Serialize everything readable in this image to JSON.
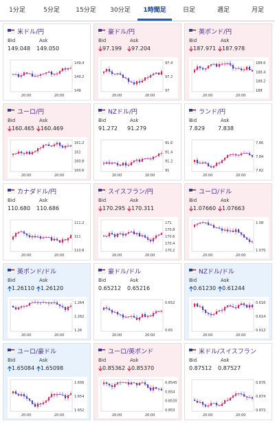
{
  "tabs": [
    "1分足",
    "5分足",
    "15分足",
    "30分足",
    "1時間足",
    "日足",
    "週足",
    "月足"
  ],
  "active_tab": 4,
  "labels": {
    "bid": "Bid",
    "ask": "Ask"
  },
  "cards": [
    {
      "name": "米ドル/円",
      "bid": "149.048",
      "ask": "149.050",
      "trend": null,
      "yticks": [
        "149.4",
        "149.2",
        "149"
      ],
      "xticks": [
        "20:00",
        "20:00"
      ]
    },
    {
      "name": "豪ドル/円",
      "bid": "97.199",
      "ask": "97.204",
      "trend": "down",
      "yticks": [
        "97.4",
        "97.2",
        "97"
      ],
      "xticks": [
        "20:00",
        "20:00"
      ]
    },
    {
      "name": "英ポンド/円",
      "bid": "187.971",
      "ask": "187.978",
      "trend": "down",
      "yticks": [
        "188.6",
        "188.4",
        "188.2",
        "188"
      ],
      "xticks": [
        "20:00",
        "20:00"
      ]
    },
    {
      "name": "ユーロ/円",
      "bid": "160.465",
      "ask": "160.469",
      "trend": "down",
      "yticks": [
        "161.2",
        "161",
        "160.8",
        "160.6"
      ],
      "xticks": [
        "20:00",
        "20:00"
      ]
    },
    {
      "name": "NZドル/円",
      "bid": "91.272",
      "ask": "91.279",
      "trend": null,
      "yticks": [
        "91.6",
        "91.4",
        "91.2",
        "91"
      ],
      "xticks": [
        "20:00",
        "20:00"
      ]
    },
    {
      "name": "ランド/円",
      "bid": "7.829",
      "ask": "7.838",
      "trend": null,
      "yticks": [
        "7.86",
        "7.84",
        "7.82"
      ],
      "xticks": [
        "20:00",
        "20:00"
      ]
    },
    {
      "name": "カナダドル/円",
      "bid": "110.680",
      "ask": "110.686",
      "trend": null,
      "yticks": [
        "111.2",
        "111",
        "110.8"
      ],
      "xticks": [
        "20:00",
        "20:00"
      ]
    },
    {
      "name": "スイスフラン/円",
      "bid": "170.295",
      "ask": "170.311",
      "trend": "down",
      "yticks": [
        "171",
        "170.8",
        "170.6",
        "170.4",
        "170.2"
      ],
      "xticks": [
        "20:00",
        "20:00"
      ]
    },
    {
      "name": "ユーロ/ドル",
      "bid": "1.07660",
      "ask": "1.07663",
      "trend": "down",
      "yticks": [
        "1.08",
        "1.075"
      ],
      "xticks": [
        "20:00",
        "20:00"
      ]
    },
    {
      "name": "英ポンド/ドル",
      "bid": "1.26110",
      "ask": "1.26120",
      "trend": "up",
      "yticks": [
        "1.264",
        "1.262",
        "1.26"
      ],
      "xticks": [
        "20:00",
        "20:00"
      ]
    },
    {
      "name": "豪ドル/ドル",
      "bid": "0.65212",
      "ask": "0.65216",
      "trend": null,
      "yticks": [
        "0.652",
        "0.65"
      ],
      "xticks": [
        "20:00",
        "20:00"
      ]
    },
    {
      "name": "NZドル/ドル",
      "bid": "0.61230",
      "ask": "0.61244",
      "trend": "up",
      "yticks": [
        "0.616",
        "0.614",
        "0.612"
      ],
      "xticks": [
        "20:00",
        "20:00"
      ]
    },
    {
      "name": "ユーロ/豪ドル",
      "bid": "1.65084",
      "ask": "1.65098",
      "trend": "up",
      "yticks": [
        "1.656",
        "1.654",
        "1.652"
      ],
      "xticks": [
        "20:00",
        "20:00"
      ]
    },
    {
      "name": "ユーロ/英ポンド",
      "bid": "0.85362",
      "ask": "0.85370",
      "trend": "down",
      "yticks": [
        "0.8545",
        "0.854",
        "0.8535",
        "0.853"
      ],
      "xticks": [
        "20:00",
        "20:00"
      ]
    },
    {
      "name": "米ドル/スイスフラン",
      "bid": "0.87512",
      "ask": "0.87527",
      "trend": null,
      "yticks": [
        "0.876",
        "0.874",
        "0.872"
      ],
      "xticks": [
        "20:00",
        "20:00"
      ]
    }
  ]
}
